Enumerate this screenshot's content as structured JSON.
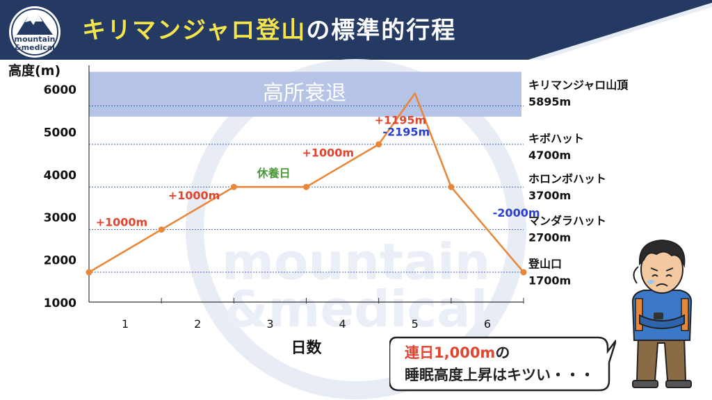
{
  "header": {
    "title_highlight": "キリマンジャロ登山",
    "title_rest": "の標準的行程",
    "bg_color": "#243a63",
    "logo_text_1": "mountain",
    "logo_text_2": "&medical"
  },
  "chart_data": {
    "type": "line",
    "ylabel": "高度(m)",
    "xlabel": "日数",
    "ylim": [
      1000,
      6000
    ],
    "yticks": [
      1000,
      2000,
      3000,
      4000,
      5000,
      6000
    ],
    "xticks": [
      "1",
      "2",
      "3",
      "4",
      "5",
      "6"
    ],
    "x": [
      0,
      1,
      2,
      3,
      4,
      5,
      6
    ],
    "series": [
      {
        "values": [
          1700,
          2700,
          3700,
          3700,
          4700,
          5895,
          3700,
          1700
        ],
        "x": [
          0,
          1,
          2,
          3,
          4,
          4.5,
          5,
          6
        ]
      }
    ],
    "zone": {
      "label": "高所衰退",
      "from": 5350,
      "to": 6400
    },
    "segment_labels": [
      {
        "text": "+1000m",
        "color": "#e0452f",
        "x": 0.45,
        "y": 2780
      },
      {
        "text": "+1000m",
        "color": "#e0452f",
        "x": 1.45,
        "y": 3410
      },
      {
        "text": "休養日",
        "color": "#4a9a3a",
        "x": 2.55,
        "y": 3930
      },
      {
        "text": "+1000m",
        "color": "#e0452f",
        "x": 3.3,
        "y": 4410
      },
      {
        "text": "+1195m",
        "color": "#e0452f",
        "x": 4.3,
        "y": 5180
      },
      {
        "text": "-2195m",
        "color": "#2a3fcf",
        "x": 4.38,
        "y": 4900
      },
      {
        "text": "-2000m",
        "color": "#2a3fcf",
        "x": 5.9,
        "y": 3000
      }
    ],
    "right_labels": [
      {
        "name": "キリマンジャロ山頂",
        "alt": "5895m",
        "y": 6000
      },
      {
        "name": "キボハット",
        "alt": "4700m",
        "y": 4750
      },
      {
        "name": "ホロンボハット",
        "alt": "3700m",
        "y": 3800
      },
      {
        "name": "マンダラハット",
        "alt": "2700m",
        "y": 2820
      },
      {
        "name": "登山口",
        "alt": "1700m",
        "y": 1810
      }
    ],
    "dashed_lines": [
      5600,
      4700,
      3700,
      2700,
      1700
    ],
    "watermark": [
      "mountain",
      "&medical"
    ],
    "line_color": "#e8873a",
    "zone_color": "#b5c3e6"
  },
  "bubble": {
    "line1_red": "連日1,000m",
    "line1_rest": "の",
    "line2": "睡眠高度上昇はキツい・・・"
  }
}
